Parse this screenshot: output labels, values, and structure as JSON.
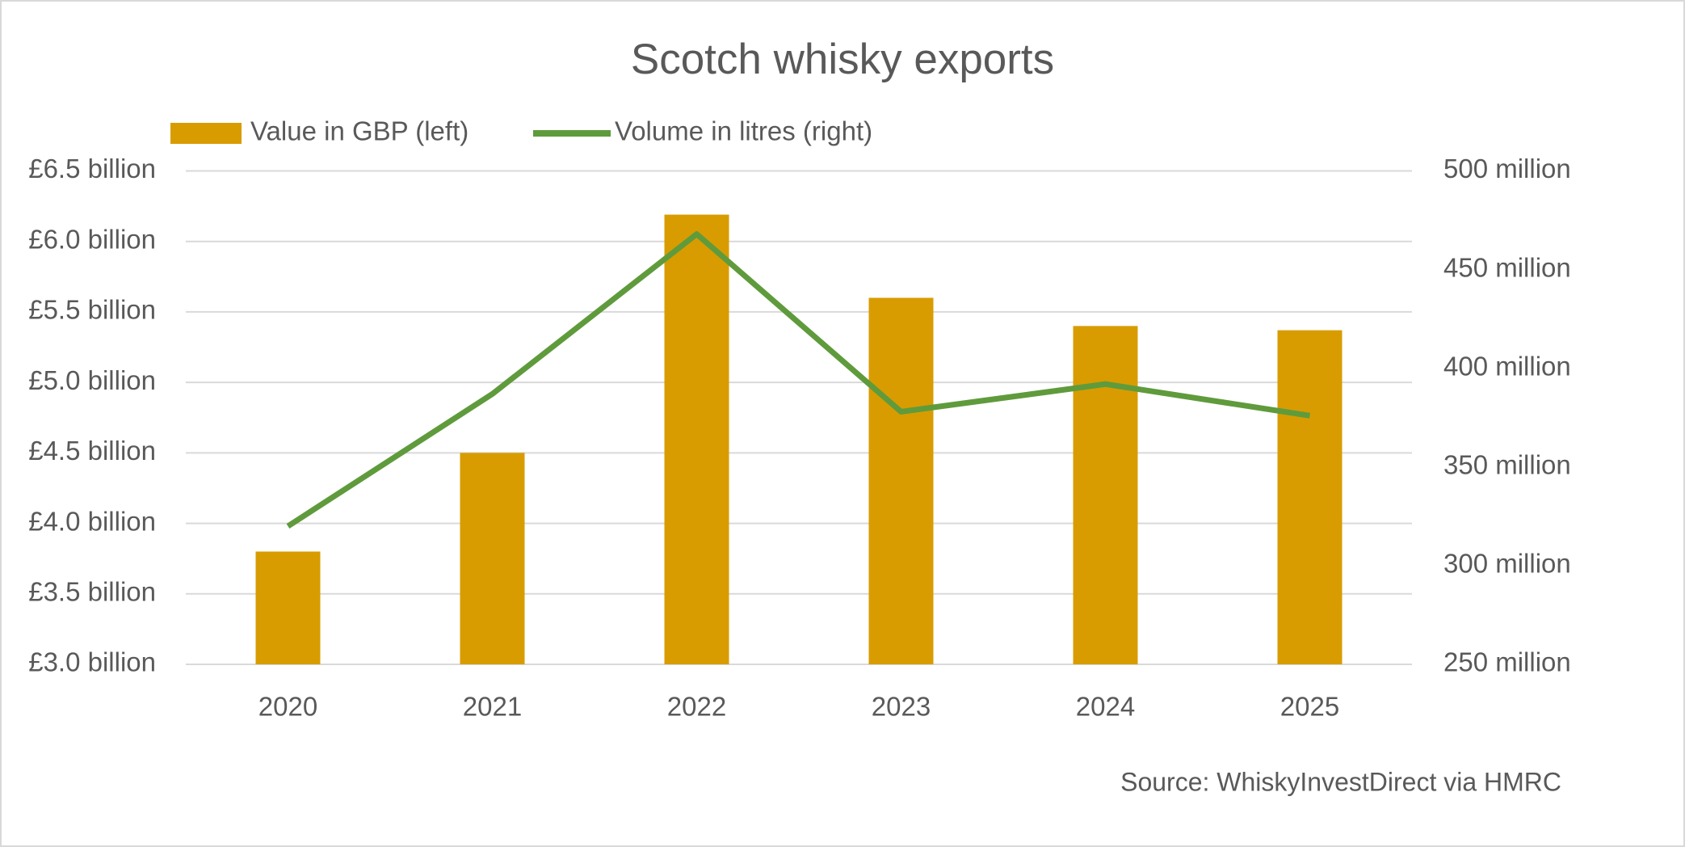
{
  "chart_data": {
    "type": "combo",
    "title": "Scotch whisky exports",
    "categories": [
      "2020",
      "2021",
      "2022",
      "2023",
      "2024",
      "2025"
    ],
    "series": [
      {
        "name": "Value in GBP (left)",
        "type": "bar",
        "color": "#d89c00",
        "values": [
          3.8,
          4.5,
          6.19,
          5.6,
          5.4,
          5.37
        ]
      },
      {
        "name": "Volume in litres (right)",
        "type": "line",
        "axis": "y2",
        "color": "#5f9b3c",
        "values": [
          320,
          387,
          468,
          378,
          392,
          376
        ]
      }
    ],
    "ylim": [
      3.0,
      6.5
    ],
    "yticks": [
      {
        "value": 3.0,
        "label": "£3.0 billion"
      },
      {
        "value": 3.5,
        "label": "£3.5 billion"
      },
      {
        "value": 4.0,
        "label": "£4.0 billion"
      },
      {
        "value": 4.5,
        "label": "£4.5 billion"
      },
      {
        "value": 5.0,
        "label": "£5.0 billion"
      },
      {
        "value": 5.5,
        "label": "£5.5 billion"
      },
      {
        "value": 6.0,
        "label": "£6.0 billion"
      },
      {
        "value": 6.5,
        "label": "£6.5 billion"
      }
    ],
    "y2lim": [
      250,
      500
    ],
    "y2ticks": [
      {
        "value": 250,
        "label": "250 million"
      },
      {
        "value": 300,
        "label": "300 million"
      },
      {
        "value": 350,
        "label": "350 million"
      },
      {
        "value": 400,
        "label": "400 million"
      },
      {
        "value": 450,
        "label": "450 million"
      },
      {
        "value": 500,
        "label": "500 million"
      }
    ],
    "grid": true,
    "legend": "top",
    "source": "Source: WhiskyInvestDirect via HMRC"
  }
}
